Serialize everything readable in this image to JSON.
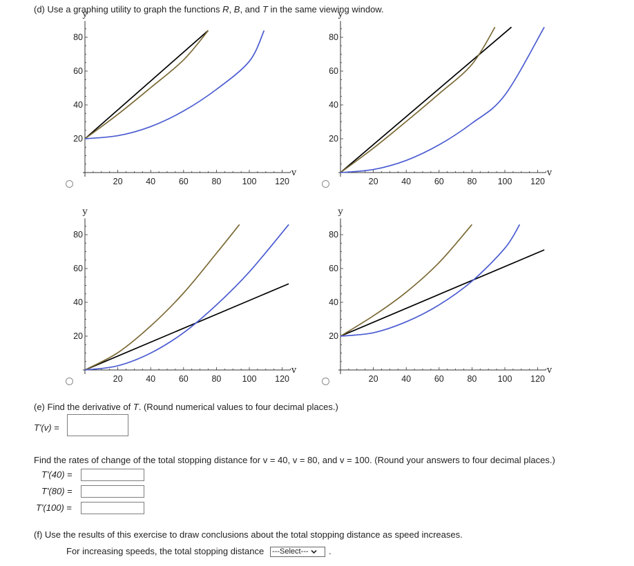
{
  "part_d": {
    "prefix": "(d) Use a graphing utility to graph the functions ",
    "R": "R",
    "sep1": ", ",
    "B": "B",
    "sep2": ", and ",
    "T": "T",
    "suffix": " in the same viewing window."
  },
  "colors": {
    "R": "#000000",
    "B": "#4a5bd1",
    "T": "#7b6a35",
    "axis": "#333333"
  },
  "chart_data": [
    {
      "type": "line",
      "option": "top-left",
      "xlabel": "v",
      "ylabel": "y",
      "xlim": [
        0,
        125
      ],
      "ylim": [
        0,
        88
      ],
      "x_ticks": [
        "20",
        "40",
        "60",
        "80",
        "100",
        "120"
      ],
      "y_ticks": [
        "20",
        "40",
        "60",
        "80"
      ],
      "series": [
        {
          "name": "R",
          "color": "#000000",
          "x": [
            0,
            75
          ],
          "values": [
            20,
            84
          ]
        },
        {
          "name": "T",
          "color": "#7b6a35",
          "x": [
            0,
            20,
            40,
            60,
            75
          ],
          "values": [
            20,
            34.4,
            50.2,
            66.6,
            84
          ]
        },
        {
          "name": "B",
          "color": "#4a5bd1",
          "x": [
            0,
            20,
            40,
            60,
            80,
            100,
            109
          ],
          "values": [
            20,
            21.8,
            27.2,
            36.4,
            49.2,
            65.8,
            84
          ]
        }
      ]
    },
    {
      "type": "line",
      "option": "top-right",
      "xlabel": "v",
      "ylabel": "y",
      "xlim": [
        0,
        125
      ],
      "ylim": [
        0,
        88
      ],
      "x_ticks": [
        "20",
        "40",
        "60",
        "80",
        "100",
        "120"
      ],
      "y_ticks": [
        "20",
        "40",
        "60",
        "80"
      ],
      "series": [
        {
          "name": "R",
          "color": "#000000",
          "x": [
            0,
            104
          ],
          "values": [
            0,
            86
          ]
        },
        {
          "name": "T",
          "color": "#7b6a35",
          "x": [
            0,
            20,
            40,
            60,
            80,
            94
          ],
          "values": [
            0,
            14.4,
            30.2,
            46.6,
            64.0,
            86
          ]
        },
        {
          "name": "B",
          "color": "#4a5bd1",
          "x": [
            0,
            20,
            40,
            60,
            80,
            100,
            124
          ],
          "values": [
            0,
            1.8,
            7.2,
            16.4,
            29.2,
            45.8,
            86
          ]
        }
      ]
    },
    {
      "type": "line",
      "option": "bottom-left",
      "xlabel": "v",
      "ylabel": "y",
      "xlim": [
        0,
        125
      ],
      "ylim": [
        0,
        88
      ],
      "x_ticks": [
        "20",
        "40",
        "60",
        "80",
        "100",
        "120"
      ],
      "y_ticks": [
        "20",
        "40",
        "60",
        "80"
      ],
      "series": [
        {
          "name": "R",
          "color": "#000000",
          "x": [
            0,
            124
          ],
          "values": [
            0,
            51
          ]
        },
        {
          "name": "T",
          "color": "#7b6a35",
          "x": [
            0,
            20,
            40,
            60,
            80,
            94
          ],
          "values": [
            0,
            10.2,
            26.0,
            45.5,
            69.0,
            86
          ]
        },
        {
          "name": "B",
          "color": "#4a5bd1",
          "x": [
            0,
            20,
            40,
            60,
            80,
            100,
            124
          ],
          "values": [
            0,
            2.5,
            10.0,
            22.0,
            38.5,
            58.0,
            86
          ]
        }
      ]
    },
    {
      "type": "line",
      "option": "bottom-right",
      "xlabel": "v",
      "ylabel": "y",
      "xlim": [
        0,
        125
      ],
      "ylim": [
        0,
        88
      ],
      "x_ticks": [
        "20",
        "40",
        "60",
        "80",
        "100",
        "120"
      ],
      "y_ticks": [
        "20",
        "40",
        "60",
        "80"
      ],
      "series": [
        {
          "name": "R",
          "color": "#000000",
          "x": [
            0,
            124
          ],
          "values": [
            20,
            71
          ]
        },
        {
          "name": "T",
          "color": "#7b6a35",
          "x": [
            0,
            20,
            40,
            60,
            80
          ],
          "values": [
            20,
            32.0,
            46.0,
            63.5,
            86
          ]
        },
        {
          "name": "B",
          "color": "#4a5bd1",
          "x": [
            0,
            20,
            40,
            60,
            80,
            100,
            109
          ],
          "values": [
            20,
            22.0,
            28.5,
            38.5,
            52.5,
            72.0,
            86
          ]
        }
      ]
    }
  ],
  "part_e": {
    "prefix": "(e) Find the derivative of ",
    "T": "T",
    "suffix": ". (Round numerical values to four decimal places.)",
    "derivative_label": "T'(v)",
    "equals": "=",
    "derivative_value": ""
  },
  "rates": {
    "prompt": "Find the rates of change of the total stopping distance for v = 40, v = 80, and v = 100. (Round your answers to four decimal places.)",
    "items": [
      {
        "label": "T'(40)",
        "value": ""
      },
      {
        "label": "T'(80)",
        "value": ""
      },
      {
        "label": "T'(100)",
        "value": ""
      }
    ]
  },
  "part_f": {
    "prompt": "(f) Use the results of this exercise to draw conclusions about the total stopping distance as speed increases.",
    "statement": "For increasing speeds, the total stopping distance",
    "select_value": "---Select---",
    "end": "."
  }
}
